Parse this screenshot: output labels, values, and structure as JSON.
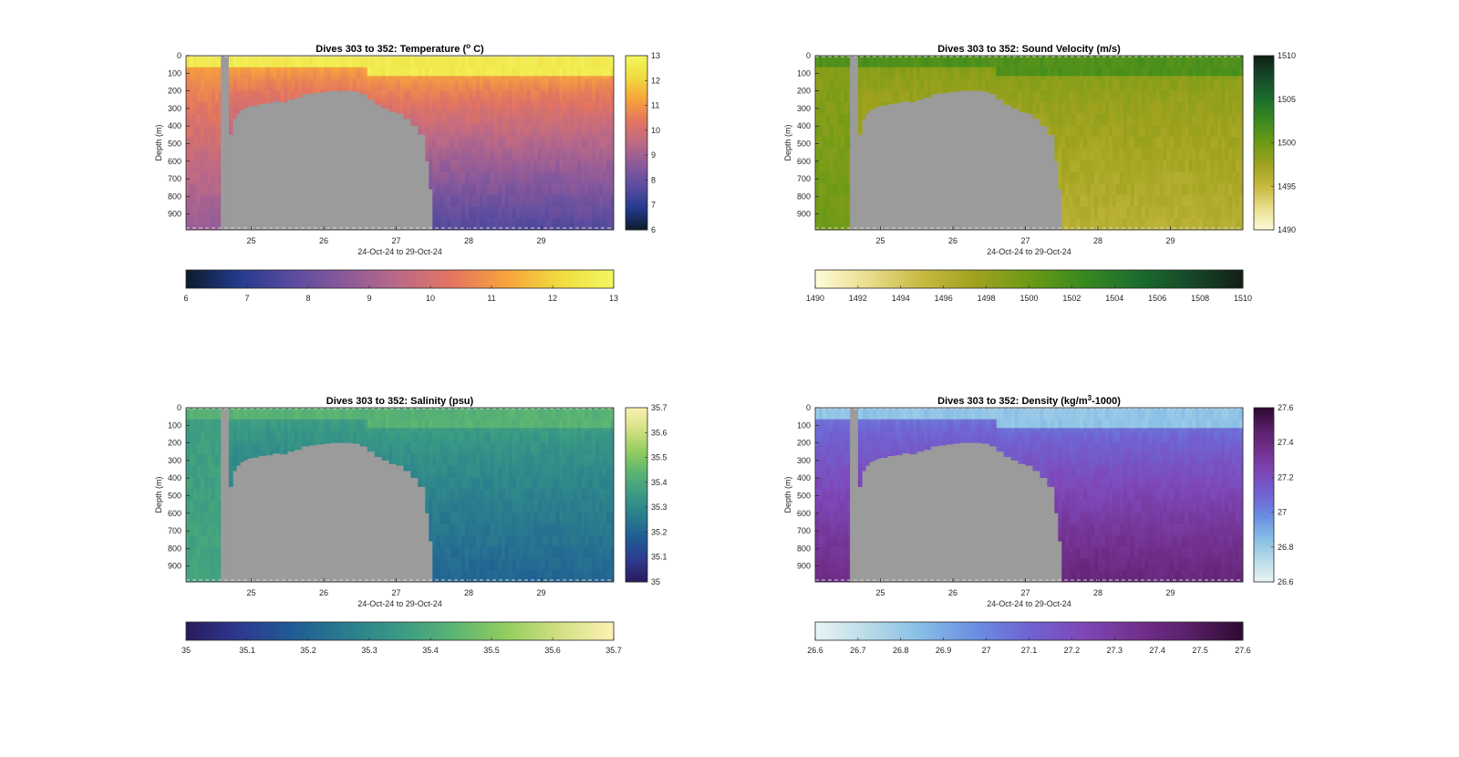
{
  "chart_data": [
    {
      "type": "heatmap",
      "variable": "temperature",
      "title_main": "Dives 303 to 352: Temperature (",
      "title_sup": "o",
      "title_tail": " C)",
      "xlabel": "24-Oct-24 to 29-Oct-24",
      "ylabel": "Depth (m)",
      "xlim": [
        24.1,
        30.0
      ],
      "ylim": [
        0,
        990
      ],
      "x_ticks": [
        "25",
        "26",
        "27",
        "28",
        "29"
      ],
      "y_ticks": [
        "0",
        "100",
        "200",
        "300",
        "400",
        "500",
        "600",
        "700",
        "800",
        "900"
      ],
      "clim": [
        6,
        13
      ],
      "vertical_colorbar_ticks": [
        "6",
        "7",
        "8",
        "9",
        "10",
        "11",
        "12",
        "13"
      ],
      "horizontal_colorbar_ticks": [
        "6",
        "7",
        "8",
        "9",
        "10",
        "11",
        "12",
        "13"
      ],
      "colormap": [
        "#0c1b2b",
        "#243b8e",
        "#5b4ca0",
        "#8c5a9a",
        "#bd6a86",
        "#e4755f",
        "#f7a33c",
        "#f0dc3f",
        "#f2f760"
      ],
      "surface_value": 12.6,
      "deep_value": 7.6,
      "early_deep_value": 8.8,
      "thermocline_value": 11.2
    },
    {
      "type": "heatmap",
      "variable": "sound_velocity",
      "title_main": "Dives 303 to 352: Sound Velocity (m/s)",
      "title_sup": "",
      "title_tail": "",
      "xlabel": "24-Oct-24 to 29-Oct-24",
      "ylabel": "Depth (m)",
      "xlim": [
        24.1,
        30.0
      ],
      "ylim": [
        0,
        990
      ],
      "x_ticks": [
        "25",
        "26",
        "27",
        "28",
        "29"
      ],
      "y_ticks": [
        "0",
        "100",
        "200",
        "300",
        "400",
        "500",
        "600",
        "700",
        "800",
        "900"
      ],
      "clim": [
        1490,
        1510
      ],
      "vertical_colorbar_ticks": [
        "1490",
        "1495",
        "1500",
        "1505",
        "1510"
      ],
      "horizontal_colorbar_ticks": [
        "1490",
        "1492",
        "1494",
        "1496",
        "1498",
        "1500",
        "1502",
        "1504",
        "1506",
        "1508",
        "1510"
      ],
      "colormap": [
        "#fefcd8",
        "#e8dd8c",
        "#c7b940",
        "#9fa21e",
        "#6c9a16",
        "#3a8a1f",
        "#1c6e2e",
        "#164a2a",
        "#121e15"
      ],
      "surface_value": 1501.5,
      "deep_value": 1496.0,
      "early_deep_value": 1499.8,
      "thermocline_value": 1498.6
    },
    {
      "type": "heatmap",
      "variable": "salinity",
      "title_main": "Dives 303 to 352: Salinity (psu)",
      "title_sup": "",
      "title_tail": "",
      "xlabel": "24-Oct-24 to 29-Oct-24",
      "ylabel": "Depth (m)",
      "xlim": [
        24.1,
        30.0
      ],
      "ylim": [
        0,
        990
      ],
      "x_ticks": [
        "25",
        "26",
        "27",
        "28",
        "29"
      ],
      "y_ticks": [
        "0",
        "100",
        "200",
        "300",
        "400",
        "500",
        "600",
        "700",
        "800",
        "900"
      ],
      "clim": [
        35.0,
        35.7
      ],
      "vertical_colorbar_ticks": [
        "35",
        "35.1",
        "35.2",
        "35.3",
        "35.4",
        "35.5",
        "35.6",
        "35.7"
      ],
      "horizontal_colorbar_ticks": [
        "35",
        "35.1",
        "35.2",
        "35.3",
        "35.4",
        "35.5",
        "35.6",
        "35.7"
      ],
      "colormap": [
        "#2a1a5e",
        "#2e3a8f",
        "#1f5c94",
        "#2a7d8e",
        "#3a9a84",
        "#5bb473",
        "#93cd5f",
        "#d4e085",
        "#fbf1b4"
      ],
      "surface_value": 35.43,
      "deep_value": 35.2,
      "early_deep_value": 35.38,
      "thermocline_value": 35.36
    },
    {
      "type": "heatmap",
      "variable": "density",
      "title_main": "Dives 303 to 352: Density (kg/m",
      "title_sup": "3",
      "title_tail": "-1000)",
      "xlabel": "24-Oct-24 to 29-Oct-24",
      "ylabel": "Depth (m)",
      "xlim": [
        24.1,
        30.0
      ],
      "ylim": [
        0,
        990
      ],
      "x_ticks": [
        "25",
        "26",
        "27",
        "28",
        "29"
      ],
      "y_ticks": [
        "0",
        "100",
        "200",
        "300",
        "400",
        "500",
        "600",
        "700",
        "800",
        "900"
      ],
      "clim": [
        26.6,
        27.6
      ],
      "vertical_colorbar_ticks": [
        "26.6",
        "26.8",
        "27",
        "27.2",
        "27.4",
        "27.6"
      ],
      "horizontal_colorbar_ticks": [
        "26.6",
        "26.7",
        "26.8",
        "26.9",
        "27",
        "27.1",
        "27.2",
        "27.3",
        "27.4",
        "27.5",
        "27.6"
      ],
      "colormap": [
        "#e9f4f4",
        "#b8dbe8",
        "#86bde6",
        "#6a8ee0",
        "#7063d2",
        "#7e48b8",
        "#73318f",
        "#5a1f68",
        "#2c0a30"
      ],
      "surface_value": 26.82,
      "deep_value": 27.42,
      "early_deep_value": 27.38,
      "thermocline_value": 27.05
    }
  ],
  "shared_bathymetry": {
    "x": [
      24.58,
      24.65,
      24.7,
      24.75,
      24.8,
      24.85,
      24.9,
      24.95,
      25.0,
      25.1,
      25.2,
      25.3,
      25.4,
      25.5,
      25.6,
      25.7,
      25.8,
      25.9,
      26.0,
      26.1,
      26.2,
      26.3,
      26.4,
      26.5,
      26.6,
      26.7,
      26.8,
      26.9,
      27.0,
      27.1,
      27.2,
      27.3,
      27.4,
      27.45,
      27.5
    ],
    "depth": [
      990,
      450,
      450,
      360,
      330,
      310,
      300,
      290,
      285,
      275,
      270,
      260,
      265,
      250,
      240,
      220,
      215,
      210,
      205,
      200,
      200,
      200,
      205,
      220,
      250,
      280,
      300,
      320,
      330,
      360,
      400,
      450,
      600,
      760,
      990
    ]
  },
  "no_data_strip": {
    "x0": 24.58,
    "x1": 24.69,
    "depth_top": 0,
    "depth_bottom": 990
  }
}
